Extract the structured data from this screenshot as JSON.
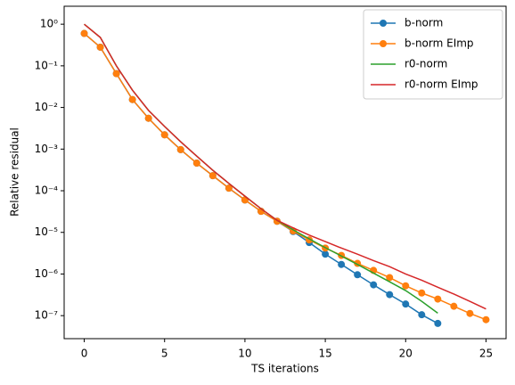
{
  "chart_data": {
    "type": "line",
    "x": [
      0,
      1,
      2,
      3,
      4,
      5,
      6,
      7,
      8,
      9,
      10,
      11,
      12,
      13,
      14,
      15,
      16,
      17,
      18,
      19,
      20,
      21,
      22,
      23,
      24,
      25
    ],
    "xlabel": "TS iterations",
    "ylabel": "Relative residual",
    "xlim": [
      -1.25,
      26.25
    ],
    "xticks": [
      0,
      5,
      10,
      15,
      20,
      25
    ],
    "ylim": [
      2.8e-08,
      2.7
    ],
    "yscale": "log",
    "yticks": [
      {
        "value": 1e-07,
        "label": "10⁻⁷"
      },
      {
        "value": 1e-06,
        "label": "10⁻⁶"
      },
      {
        "value": 1e-05,
        "label": "10⁻⁵"
      },
      {
        "value": 0.0001,
        "label": "10⁻⁴"
      },
      {
        "value": 0.001,
        "label": "10⁻³"
      },
      {
        "value": 0.01,
        "label": "10⁻²"
      },
      {
        "value": 0.1,
        "label": "10⁻¹"
      },
      {
        "value": 1,
        "label": "10⁰"
      }
    ],
    "legend": "upper right",
    "series": [
      {
        "name": "b-norm",
        "color": "#1f77b4",
        "marker": "o",
        "values": [
          0.6,
          0.28,
          0.065,
          0.0155,
          0.0055,
          0.0022,
          0.00097,
          0.00046,
          0.00023,
          0.000115,
          6e-05,
          3.2e-05,
          1.85e-05,
          1.05e-05,
          5.7e-06,
          3e-06,
          1.7e-06,
          9.6e-07,
          5.5e-07,
          3.2e-07,
          1.9e-07,
          1.05e-07,
          6.5e-08,
          null,
          null,
          null
        ]
      },
      {
        "name": "b-norm EImp",
        "color": "#ff7f0e",
        "marker": "o",
        "values": [
          0.6,
          0.28,
          0.065,
          0.0155,
          0.0055,
          0.0022,
          0.00097,
          0.00046,
          0.00023,
          0.000115,
          6e-05,
          3.2e-05,
          1.85e-05,
          1.08e-05,
          6.6e-06,
          4.2e-06,
          2.8e-06,
          1.8e-06,
          1.22e-06,
          8.2e-07,
          5.2e-07,
          3.5e-07,
          2.5e-07,
          1.68e-07,
          1.13e-07,
          8e-08
        ]
      },
      {
        "name": "r0-norm",
        "color": "#2ca02c",
        "marker": null,
        "values": [
          1.0,
          0.48,
          0.1,
          0.026,
          0.0085,
          0.0035,
          0.0015,
          0.00068,
          0.00031,
          0.00015,
          7.4e-05,
          3.7e-05,
          1.95e-05,
          1.15e-05,
          7e-06,
          4.3e-06,
          2.7e-06,
          1.7e-06,
          1.05e-06,
          6.5e-07,
          4e-07,
          2.2e-07,
          1.15e-07,
          null,
          null,
          null
        ]
      },
      {
        "name": "r0-norm EImp",
        "color": "#d62728",
        "marker": null,
        "values": [
          1.0,
          0.48,
          0.1,
          0.026,
          0.0085,
          0.0035,
          0.0015,
          0.00068,
          0.00031,
          0.00015,
          7.4e-05,
          3.7e-05,
          1.95e-05,
          1.28e-05,
          8.6e-06,
          6e-06,
          4.2e-06,
          3e-06,
          2.1e-06,
          1.5e-06,
          1e-06,
          7.1e-07,
          4.8e-07,
          3.3e-07,
          2.2e-07,
          1.45e-07
        ]
      }
    ]
  }
}
